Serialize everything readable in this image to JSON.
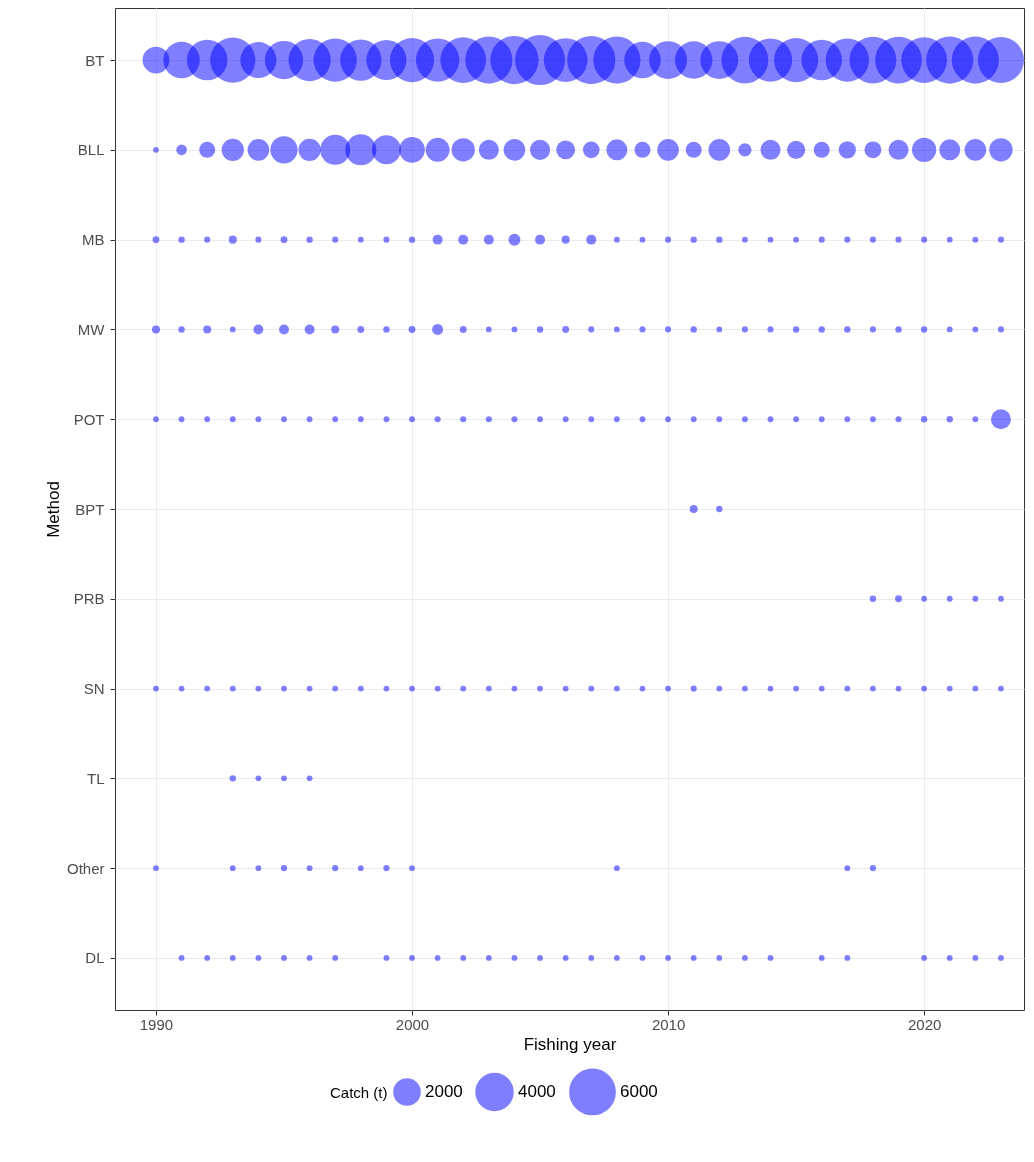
{
  "chart_data": {
    "type": "bubble",
    "orientation": "horizontal",
    "xlabel": "Fishing year",
    "ylabel": "Method",
    "legend_title": "Catch (t)",
    "categories": [
      "BT",
      "BLL",
      "MB",
      "MW",
      "POT",
      "BPT",
      "PRB",
      "SN",
      "TL",
      "Other",
      "DL"
    ],
    "xlim": [
      1988.4,
      2023.9
    ],
    "xticks": [
      1990,
      2000,
      2010,
      2020
    ],
    "size_legend": [
      2000,
      4000,
      6000
    ],
    "grid": true,
    "series": [
      {
        "color": "#0000ff",
        "values": [
          1990,
          1990,
          1990,
          1990,
          1990,
          null,
          null,
          1990,
          null,
          1990,
          null
        ],
        "sizes": [
          2100,
          100,
          140,
          190,
          100,
          null,
          null,
          100,
          null,
          100,
          null
        ]
      },
      {
        "color": "#0000ff",
        "values": [
          1991,
          1991,
          1991,
          1991,
          1991,
          null,
          null,
          1991,
          null,
          null,
          1991
        ],
        "sizes": [
          3900,
          330,
          120,
          120,
          100,
          null,
          null,
          100,
          null,
          null,
          100
        ]
      },
      {
        "color": "#0000ff",
        "values": [
          1992,
          1992,
          1992,
          1992,
          1992,
          null,
          null,
          1992,
          null,
          null,
          1992
        ],
        "sizes": [
          4800,
          750,
          110,
          190,
          100,
          null,
          null,
          100,
          null,
          null,
          100
        ]
      },
      {
        "color": "#0000ff",
        "values": [
          1993,
          1993,
          1993,
          1993,
          1993,
          null,
          null,
          1993,
          1993,
          1993,
          1993
        ],
        "sizes": [
          6000,
          1450,
          190,
          100,
          100,
          null,
          null,
          100,
          120,
          100,
          100
        ]
      },
      {
        "color": "#0000ff",
        "values": [
          1994,
          1994,
          1994,
          1994,
          1994,
          null,
          null,
          1994,
          1994,
          1994,
          1994
        ],
        "sizes": [
          3800,
          1370,
          110,
          290,
          100,
          null,
          null,
          100,
          100,
          100,
          100
        ]
      },
      {
        "color": "#0000ff",
        "values": [
          1995,
          1995,
          1995,
          1995,
          1995,
          null,
          null,
          1995,
          1995,
          1995,
          1995
        ],
        "sizes": [
          4300,
          2180,
          140,
          290,
          100,
          null,
          null,
          100,
          100,
          110,
          100
        ]
      },
      {
        "color": "#0000ff",
        "values": [
          1996,
          1996,
          1996,
          1996,
          1996,
          null,
          null,
          1996,
          1996,
          1996,
          1996
        ],
        "sizes": [
          5200,
          1450,
          120,
          290,
          100,
          null,
          null,
          100,
          100,
          100,
          100
        ]
      },
      {
        "color": "#0000ff",
        "values": [
          1997,
          1997,
          1997,
          1997,
          1997,
          null,
          null,
          1997,
          null,
          1997,
          1997
        ],
        "sizes": [
          5500,
          2630,
          110,
          190,
          100,
          null,
          null,
          100,
          null,
          110,
          100
        ]
      },
      {
        "color": "#0000ff",
        "values": [
          1998,
          1998,
          1998,
          1998,
          1998,
          null,
          null,
          1998,
          null,
          1998,
          null
        ],
        "sizes": [
          5000,
          2810,
          100,
          140,
          100,
          null,
          null,
          100,
          null,
          100,
          null
        ]
      },
      {
        "color": "#0000ff",
        "values": [
          1999,
          1999,
          1999,
          1999,
          1999,
          null,
          null,
          1999,
          null,
          1999,
          1999
        ],
        "sizes": [
          4700,
          2460,
          110,
          120,
          100,
          null,
          null,
          100,
          null,
          110,
          100
        ]
      },
      {
        "color": "#0000ff",
        "values": [
          2000,
          2000,
          2000,
          2000,
          2000,
          null,
          null,
          2000,
          null,
          2000,
          2000
        ],
        "sizes": [
          5700,
          1930,
          120,
          140,
          110,
          null,
          null,
          100,
          null,
          100,
          100
        ]
      },
      {
        "color": "#0000ff",
        "values": [
          2001,
          2001,
          2001,
          2001,
          2001,
          null,
          null,
          2001,
          null,
          null,
          2001
        ],
        "sizes": [
          5500,
          1680,
          290,
          350,
          110,
          null,
          null,
          100,
          null,
          null,
          100
        ]
      },
      {
        "color": "#0000ff",
        "values": [
          2002,
          2002,
          2002,
          2002,
          2002,
          null,
          null,
          2002,
          null,
          null,
          2002
        ],
        "sizes": [
          6100,
          1590,
          290,
          140,
          110,
          null,
          null,
          100,
          null,
          null,
          100
        ]
      },
      {
        "color": "#0000ff",
        "values": [
          2003,
          2003,
          2003,
          2003,
          2003,
          null,
          null,
          2003,
          null,
          null,
          2003
        ],
        "sizes": [
          6500,
          1170,
          290,
          100,
          110,
          null,
          null,
          100,
          null,
          null,
          100
        ]
      },
      {
        "color": "#0000ff",
        "values": [
          2004,
          2004,
          2004,
          2004,
          2004,
          null,
          null,
          2004,
          null,
          null,
          2004
        ],
        "sizes": [
          6800,
          1370,
          420,
          100,
          110,
          null,
          null,
          100,
          null,
          null,
          100
        ]
      },
      {
        "color": "#0000ff",
        "values": [
          2005,
          2005,
          2005,
          2005,
          2005,
          null,
          null,
          2005,
          null,
          null,
          2005
        ],
        "sizes": [
          7300,
          1200,
          290,
          120,
          100,
          null,
          null,
          100,
          null,
          null,
          100
        ]
      },
      {
        "color": "#0000ff",
        "values": [
          2006,
          2006,
          2006,
          2006,
          2006,
          null,
          null,
          2006,
          null,
          null,
          2006
        ],
        "sizes": [
          5600,
          1050,
          190,
          140,
          100,
          null,
          null,
          100,
          null,
          null,
          100
        ]
      },
      {
        "color": "#0000ff",
        "values": [
          2007,
          2007,
          2007,
          2007,
          2007,
          null,
          null,
          2007,
          null,
          null,
          2007
        ],
        "sizes": [
          6800,
          810,
          290,
          110,
          100,
          null,
          null,
          100,
          null,
          null,
          100
        ]
      },
      {
        "color": "#0000ff",
        "values": [
          2008,
          2008,
          2008,
          2008,
          2008,
          null,
          null,
          2008,
          null,
          2008,
          2008
        ],
        "sizes": [
          6500,
          1290,
          100,
          100,
          100,
          null,
          null,
          100,
          null,
          100,
          100
        ]
      },
      {
        "color": "#0000ff",
        "values": [
          2009,
          2009,
          2009,
          2009,
          2009,
          null,
          null,
          2009,
          null,
          null,
          2009
        ],
        "sizes": [
          3900,
          750,
          100,
          110,
          100,
          null,
          null,
          100,
          null,
          null,
          100
        ]
      },
      {
        "color": "#0000ff",
        "values": [
          2010,
          2010,
          2010,
          2010,
          2010,
          null,
          null,
          2010,
          null,
          null,
          2010
        ],
        "sizes": [
          4200,
          1370,
          110,
          110,
          100,
          null,
          null,
          100,
          null,
          null,
          100
        ]
      },
      {
        "color": "#0000ff",
        "values": [
          2011,
          2011,
          2011,
          2011,
          2011,
          2011,
          null,
          2011,
          null,
          null,
          2011
        ],
        "sizes": [
          4100,
          750,
          120,
          120,
          100,
          190,
          null,
          110,
          null,
          null,
          100
        ]
      },
      {
        "color": "#0000ff",
        "values": [
          2012,
          2012,
          2012,
          2012,
          2012,
          2012,
          null,
          2012,
          null,
          null,
          2012
        ],
        "sizes": [
          4200,
          1370,
          120,
          100,
          100,
          120,
          null,
          100,
          null,
          null,
          100
        ]
      },
      {
        "color": "#0000ff",
        "values": [
          2013,
          2013,
          2013,
          2013,
          2013,
          null,
          null,
          2013,
          null,
          null,
          2013
        ],
        "sizes": [
          6400,
          520,
          100,
          110,
          100,
          null,
          null,
          100,
          null,
          null,
          100
        ]
      },
      {
        "color": "#0000ff",
        "values": [
          2014,
          2014,
          2014,
          2014,
          2014,
          null,
          null,
          2014,
          null,
          null,
          2014
        ],
        "sizes": [
          5500,
          1170,
          100,
          110,
          100,
          null,
          null,
          100,
          null,
          null,
          100
        ]
      },
      {
        "color": "#0000ff",
        "values": [
          2015,
          2015,
          2015,
          2015,
          2015,
          null,
          null,
          2015,
          null,
          null,
          null
        ],
        "sizes": [
          5700,
          980,
          100,
          120,
          100,
          null,
          null,
          100,
          null,
          null,
          null
        ]
      },
      {
        "color": "#0000ff",
        "values": [
          2016,
          2016,
          2016,
          2016,
          2016,
          null,
          null,
          2016,
          null,
          null,
          2016
        ],
        "sizes": [
          4800,
          750,
          110,
          120,
          100,
          null,
          null,
          100,
          null,
          null,
          100
        ]
      },
      {
        "color": "#0000ff",
        "values": [
          2017,
          2017,
          2017,
          2017,
          2017,
          null,
          null,
          2017,
          null,
          2017,
          2017
        ],
        "sizes": [
          5500,
          880,
          110,
          120,
          100,
          null,
          null,
          100,
          null,
          100,
          100
        ]
      },
      {
        "color": "#0000ff",
        "values": [
          2018,
          2018,
          2018,
          2018,
          2018,
          null,
          2018,
          2018,
          null,
          2018,
          null
        ],
        "sizes": [
          6400,
          840,
          110,
          110,
          100,
          null,
          120,
          100,
          null,
          110,
          null
        ]
      },
      {
        "color": "#0000ff",
        "values": [
          2019,
          2019,
          2019,
          2019,
          2019,
          null,
          2019,
          2019,
          null,
          null,
          null
        ],
        "sizes": [
          6400,
          1170,
          110,
          120,
          110,
          null,
          140,
          100,
          null,
          null,
          null
        ]
      },
      {
        "color": "#0000ff",
        "values": [
          2020,
          2020,
          2020,
          2020,
          2020,
          null,
          2020,
          2020,
          null,
          null,
          2020
        ],
        "sizes": [
          6100,
          1730,
          110,
          120,
          120,
          null,
          100,
          100,
          null,
          null,
          100
        ]
      },
      {
        "color": "#0000ff",
        "values": [
          2021,
          2021,
          2021,
          2021,
          2021,
          null,
          2021,
          2021,
          null,
          null,
          2021
        ],
        "sizes": [
          6500,
          1290,
          100,
          100,
          120,
          null,
          100,
          100,
          null,
          null,
          100
        ]
      },
      {
        "color": "#0000ff",
        "values": [
          2022,
          2022,
          2022,
          2022,
          2022,
          null,
          2022,
          2022,
          null,
          null,
          2022
        ],
        "sizes": [
          6500,
          1370,
          100,
          100,
          100,
          null,
          100,
          100,
          null,
          null,
          100
        ]
      },
      {
        "color": "#0000ff",
        "values": [
          2023,
          2023,
          2023,
          2023,
          2023,
          null,
          2023,
          2023,
          null,
          null,
          2023
        ],
        "sizes": [
          6200,
          1590,
          110,
          110,
          1170,
          null,
          100,
          100,
          null,
          null,
          100
        ]
      }
    ]
  }
}
